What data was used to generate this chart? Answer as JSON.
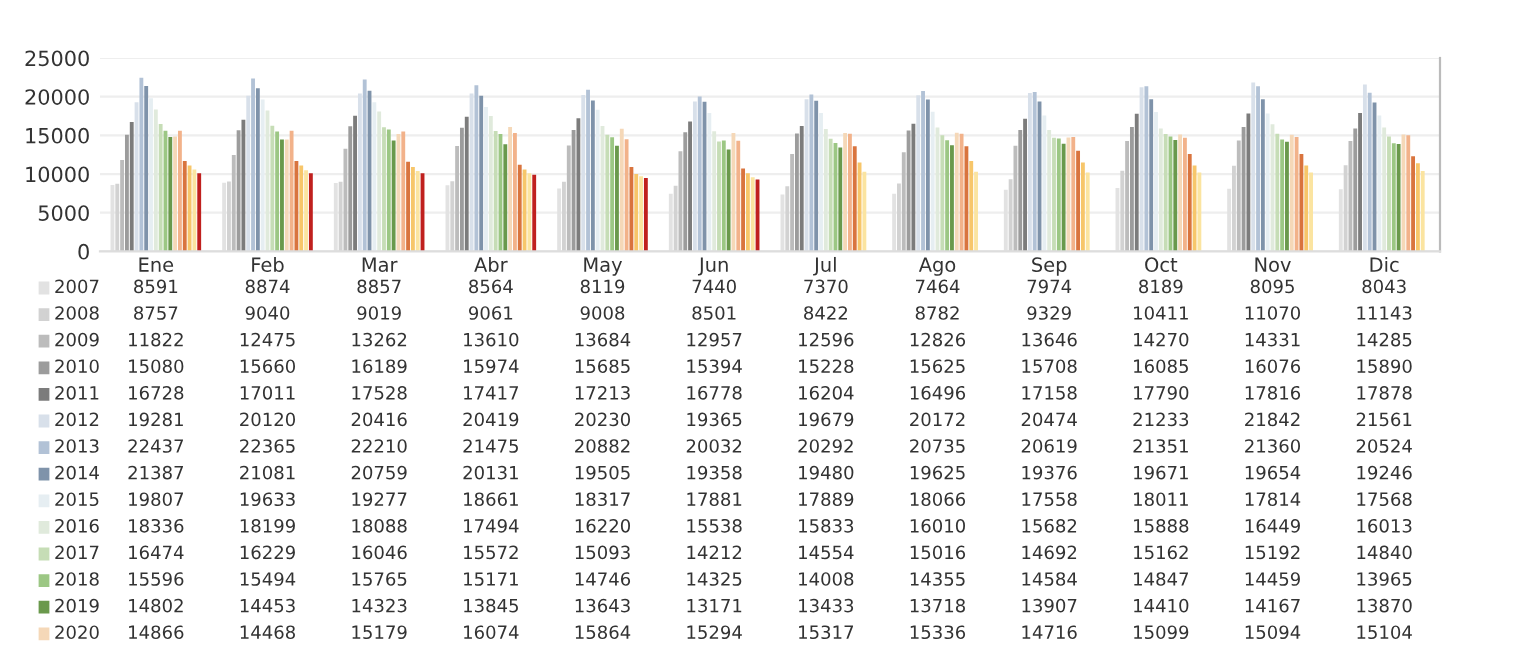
{
  "chart_data": {
    "type": "bar",
    "categories": [
      "Ene",
      "Feb",
      "Mar",
      "Abr",
      "May",
      "Jun",
      "Jul",
      "Ago",
      "Sep",
      "Oct",
      "Nov",
      "Dic"
    ],
    "ylim": [
      0,
      25000
    ],
    "yticks": [
      0,
      5000,
      10000,
      15000,
      20000,
      25000
    ],
    "grid": "y",
    "legend": "bottom left",
    "series": [
      {
        "name": "2007",
        "color": "#e2e2e2",
        "values": [
          8591,
          8874,
          8857,
          8564,
          8119,
          7440,
          7370,
          7464,
          7974,
          8189,
          8095,
          8043
        ],
        "value_labels": [
          "8591",
          "8874",
          "8857",
          "8564",
          "8119",
          "7440",
          "7370",
          "7464",
          "7974",
          "8189",
          "8095",
          "8043"
        ]
      },
      {
        "name": "2008",
        "color": "#d2d2d2",
        "values": [
          8757,
          9040,
          9019,
          9061,
          9008,
          8501,
          8422,
          8782,
          9329,
          10411,
          11070,
          11143
        ],
        "value_labels": [
          "8757",
          "9040",
          "9019",
          "9061",
          "9008",
          "8501",
          "8422",
          "8782",
          "9329",
          "10411",
          "11070",
          "11143"
        ]
      },
      {
        "name": "2009",
        "color": "#bcbcbc",
        "values": [
          11822,
          12475,
          13262,
          13610,
          13684,
          12957,
          12596,
          12826,
          13646,
          14270,
          14331,
          14285
        ],
        "value_labels": [
          "11822",
          "12475",
          "13262",
          "13610",
          "13684",
          "12957",
          "12596",
          "12826",
          "13646",
          "14270",
          "14331",
          "14285"
        ]
      },
      {
        "name": "2010",
        "color": "#9c9c9c",
        "values": [
          15080,
          15660,
          16189,
          15974,
          15685,
          15394,
          15228,
          15625,
          15708,
          16085,
          16076,
          15890
        ],
        "value_labels": [
          "15080",
          "15660",
          "16189",
          "15974",
          "15685",
          "15394",
          "15228",
          "15625",
          "15708",
          "16085",
          "16076",
          "15890"
        ]
      },
      {
        "name": "2011",
        "color": "#7c7c7c",
        "values": [
          16728,
          17011,
          17528,
          17417,
          17213,
          16778,
          16204,
          16496,
          17158,
          17790,
          17816,
          17878
        ],
        "value_labels": [
          "16728",
          "17011",
          "17528",
          "17417",
          "17213",
          "16778",
          "16204",
          "16496",
          "17158",
          "17790",
          "17816",
          "17878"
        ]
      },
      {
        "name": "2012",
        "color": "#d8e0ea",
        "values": [
          19281,
          20120,
          20416,
          20419,
          20230,
          19365,
          19679,
          20172,
          20474,
          21233,
          21842,
          21561
        ],
        "value_labels": [
          "19281",
          "20120",
          "20416",
          "20419",
          "20230",
          "19365",
          "19679",
          "20172",
          "20474",
          "21233",
          "21842",
          "21561"
        ]
      },
      {
        "name": "2013",
        "color": "#b2c2d6",
        "values": [
          22437,
          22365,
          22210,
          21475,
          20882,
          20032,
          20292,
          20735,
          20619,
          21351,
          21360,
          20524
        ],
        "value_labels": [
          "22437",
          "22365",
          "22210",
          "21475",
          "20882",
          "20032",
          "20292",
          "20735",
          "20619",
          "21351",
          "21360",
          "20524"
        ]
      },
      {
        "name": "2014",
        "color": "#7f93aa",
        "values": [
          21387,
          21081,
          20759,
          20131,
          19505,
          19358,
          19480,
          19625,
          19376,
          19671,
          19654,
          19246
        ],
        "value_labels": [
          "21387",
          "21081",
          "20759",
          "20131",
          "19505",
          "19358",
          "19480",
          "19625",
          "19376",
          "19671",
          "19654",
          "19246"
        ]
      },
      {
        "name": "2015",
        "color": "#e6eef2",
        "values": [
          19807,
          19633,
          19277,
          18661,
          18317,
          17881,
          17889,
          18066,
          17558,
          18011,
          17814,
          17568
        ],
        "value_labels": [
          "19807",
          "19633",
          "19277",
          "18661",
          "18317",
          "17881",
          "17889",
          "18066",
          "17558",
          "18011",
          "17814",
          "17568"
        ]
      },
      {
        "name": "2016",
        "color": "#e0eadc",
        "values": [
          18336,
          18199,
          18088,
          17494,
          16220,
          15538,
          15833,
          16010,
          15682,
          15888,
          16449,
          16013
        ],
        "value_labels": [
          "18336",
          "18199",
          "18088",
          "17494",
          "16220",
          "15538",
          "15833",
          "16010",
          "15682",
          "15888",
          "16449",
          "16013"
        ]
      },
      {
        "name": "2017",
        "color": "#c6ddb6",
        "values": [
          16474,
          16229,
          16046,
          15572,
          15093,
          14212,
          14554,
          15016,
          14692,
          15162,
          15192,
          14840
        ],
        "value_labels": [
          "16474",
          "16229",
          "16046",
          "15572",
          "15093",
          "14212",
          "14554",
          "15016",
          "14692",
          "15162",
          "15192",
          "14840"
        ]
      },
      {
        "name": "2018",
        "color": "#9cc784",
        "values": [
          15596,
          15494,
          15765,
          15171,
          14746,
          14325,
          14008,
          14355,
          14584,
          14847,
          14459,
          13965
        ],
        "value_labels": [
          "15596",
          "15494",
          "15765",
          "15171",
          "14746",
          "14325",
          "14008",
          "14355",
          "14584",
          "14847",
          "14459",
          "13965"
        ]
      },
      {
        "name": "2019",
        "color": "#6a994c",
        "values": [
          14802,
          14453,
          14323,
          13845,
          13643,
          13171,
          13433,
          13718,
          13907,
          14410,
          14167,
          13870
        ],
        "value_labels": [
          "14802",
          "14453",
          "14323",
          "13845",
          "13643",
          "13171",
          "13433",
          "13718",
          "13907",
          "14410",
          "14167",
          "13870"
        ]
      },
      {
        "name": "2020",
        "color": "#f5d8b8",
        "values": [
          14866,
          14468,
          15179,
          16074,
          15864,
          15294,
          15317,
          15336,
          14716,
          15099,
          15094,
          15104
        ],
        "value_labels": [
          "14866",
          "14468",
          "15179",
          "16074",
          "15864",
          "15294",
          "15317",
          "15336",
          "14716",
          "15099",
          "15094",
          "15104"
        ]
      },
      {
        "color": "#f2b28a",
        "values": [
          15600,
          15600,
          15500,
          15300,
          14500,
          14300,
          15200,
          15200,
          14800,
          14700,
          14800,
          15000
        ]
      },
      {
        "color": "#d9743e",
        "values": [
          11700,
          11700,
          11600,
          11200,
          10900,
          10700,
          13600,
          13600,
          13000,
          12600,
          12600,
          12300
        ]
      },
      {
        "color": "#f7c66a",
        "values": [
          11100,
          11100,
          10900,
          10600,
          10000,
          10100,
          11500,
          11700,
          11500,
          11100,
          11100,
          11400
        ]
      },
      {
        "color": "#fbe4a0",
        "values": [
          10600,
          10500,
          10400,
          10100,
          9700,
          9600,
          10300,
          10300,
          10200,
          10200,
          10200,
          10400
        ]
      },
      {
        "color": "#c0201e",
        "values": [
          10100,
          10100,
          10100,
          9900,
          9500,
          9300,
          null,
          null,
          null,
          null,
          null,
          null
        ]
      }
    ]
  }
}
